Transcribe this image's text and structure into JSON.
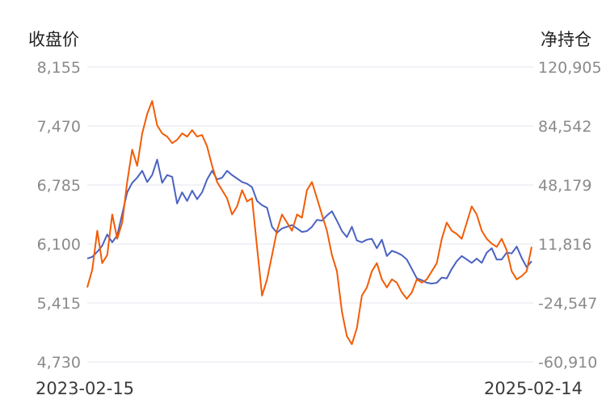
{
  "chart_data": {
    "type": "line",
    "left_axis_title": "收盘价",
    "right_axis_title": "净持仓",
    "left_ticks": [
      "8,155",
      "7,470",
      "6,785",
      "6,100",
      "5,415",
      "4,730"
    ],
    "right_ticks": [
      "120,905",
      "84,542",
      "48,179",
      "11,816",
      "-24,547",
      "-60,910"
    ],
    "ylim_left": [
      4730,
      8155
    ],
    "ylim_right": [
      -60910,
      120905
    ],
    "x_start": "2023-02-15",
    "x_end": "2025-02-14",
    "grid": true,
    "series": [
      {
        "axis": "left",
        "color": "#4a62c2",
        "values": [
          5930,
          5950,
          6010,
          6080,
          6210,
          6120,
          6200,
          6450,
          6700,
          6810,
          6870,
          6950,
          6820,
          6900,
          7080,
          6810,
          6900,
          6880,
          6570,
          6700,
          6600,
          6720,
          6620,
          6700,
          6850,
          6950,
          6850,
          6870,
          6950,
          6900,
          6860,
          6820,
          6800,
          6760,
          6600,
          6550,
          6520,
          6300,
          6230,
          6280,
          6300,
          6320,
          6280,
          6240,
          6250,
          6300,
          6380,
          6370,
          6430,
          6480,
          6370,
          6250,
          6180,
          6300,
          6140,
          6120,
          6150,
          6160,
          6050,
          6150,
          5960,
          6020,
          6000,
          5970,
          5920,
          5810,
          5700,
          5680,
          5650,
          5640,
          5650,
          5710,
          5700,
          5810,
          5900,
          5960,
          5920,
          5880,
          5930,
          5880,
          6000,
          6050,
          5920,
          5920,
          6000,
          5990,
          6070,
          5940,
          5830,
          5900
        ]
      },
      {
        "axis": "right",
        "color": "#f25c05",
        "values": [
          -15000,
          -4000,
          20000,
          0,
          5000,
          30000,
          15000,
          25000,
          50000,
          70000,
          60000,
          80000,
          92000,
          100000,
          85000,
          80000,
          78000,
          74000,
          76000,
          80000,
          78000,
          82000,
          78000,
          79000,
          72000,
          60000,
          50000,
          45000,
          40000,
          30000,
          35000,
          45000,
          38000,
          40000,
          10000,
          -20000,
          -10000,
          5000,
          20000,
          30000,
          25000,
          20000,
          30000,
          28000,
          45000,
          50000,
          40000,
          30000,
          20000,
          5000,
          -5000,
          -30000,
          -45000,
          -50000,
          -40000,
          -20000,
          -15000,
          -5000,
          0,
          -10000,
          -15000,
          -10000,
          -12000,
          -18000,
          -22000,
          -18000,
          -10000,
          -12000,
          -10000,
          -5000,
          0,
          15000,
          25000,
          20000,
          18000,
          15000,
          25000,
          35000,
          30000,
          20000,
          15000,
          12000,
          10000,
          15000,
          8000,
          -5000,
          -10000,
          -8000,
          -5000,
          10000
        ]
      }
    ]
  }
}
